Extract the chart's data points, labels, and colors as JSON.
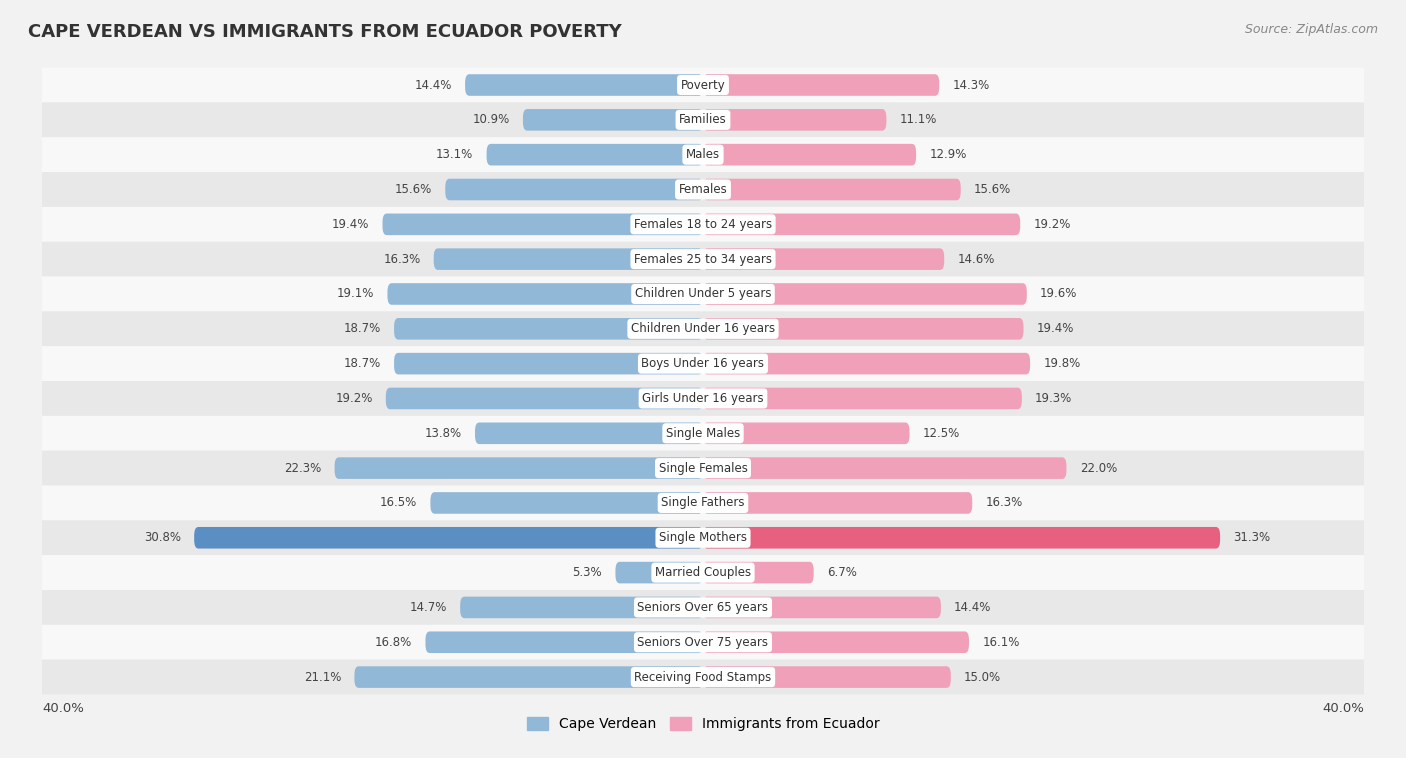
{
  "title": "CAPE VERDEAN VS IMMIGRANTS FROM ECUADOR POVERTY",
  "source": "Source: ZipAtlas.com",
  "categories": [
    "Poverty",
    "Families",
    "Males",
    "Females",
    "Females 18 to 24 years",
    "Females 25 to 34 years",
    "Children Under 5 years",
    "Children Under 16 years",
    "Boys Under 16 years",
    "Girls Under 16 years",
    "Single Males",
    "Single Females",
    "Single Fathers",
    "Single Mothers",
    "Married Couples",
    "Seniors Over 65 years",
    "Seniors Over 75 years",
    "Receiving Food Stamps"
  ],
  "left_values": [
    14.4,
    10.9,
    13.1,
    15.6,
    19.4,
    16.3,
    19.1,
    18.7,
    18.7,
    19.2,
    13.8,
    22.3,
    16.5,
    30.8,
    5.3,
    14.7,
    16.8,
    21.1
  ],
  "right_values": [
    14.3,
    11.1,
    12.9,
    15.6,
    19.2,
    14.6,
    19.6,
    19.4,
    19.8,
    19.3,
    12.5,
    22.0,
    16.3,
    31.3,
    6.7,
    14.4,
    16.1,
    15.0
  ],
  "left_color": "#92b8d8",
  "right_color": "#f0a0b8",
  "highlight_left_color": "#5b8fc4",
  "highlight_right_color": "#e86080",
  "background_color": "#f2f2f2",
  "row_bg_odd": "#e8e8e8",
  "row_bg_even": "#f8f8f8",
  "xlim": 40.0,
  "legend_left": "Cape Verdean",
  "legend_right": "Immigrants from Ecuador",
  "bar_height": 0.62,
  "highlight_idx": 13
}
